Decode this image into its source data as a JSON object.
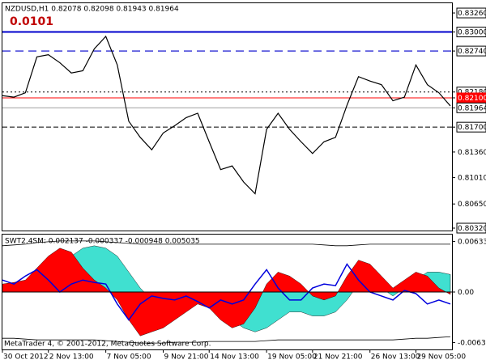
{
  "chart_data": [
    {
      "type": "line",
      "title": "NZDUSD,H1  0.82078 0.82098 0.81943 0.81964",
      "annotation": "0.0101",
      "color": "#000000",
      "categories": [
        "30 Oct 2012",
        null,
        null,
        null,
        "2 Nov 13:00",
        null,
        null,
        null,
        null,
        "7 Nov 05:00",
        null,
        null,
        null,
        null,
        "9 Nov 21:00",
        null,
        null,
        null,
        "14 Nov 13:00",
        null,
        null,
        null,
        null,
        "19 Nov 05:00",
        null,
        null,
        null,
        "21 Nov 21:00",
        null,
        null,
        null,
        null,
        "26 Nov 13:00",
        null,
        null,
        null,
        "29 Nov 05:00",
        null,
        null,
        null
      ],
      "values": [
        0.8213,
        0.8211,
        0.8217,
        0.8266,
        0.8269,
        0.8258,
        0.8244,
        0.8247,
        0.8277,
        0.8294,
        0.8255,
        0.8178,
        0.8156,
        0.8139,
        0.8162,
        0.8172,
        0.8183,
        0.8189,
        0.815,
        0.8112,
        0.8117,
        0.8095,
        0.8079,
        0.8167,
        0.8189,
        0.8167,
        0.815,
        0.8134,
        0.815,
        0.8156,
        0.82,
        0.8239,
        0.8233,
        0.8228,
        0.8206,
        0.8211,
        0.8255,
        0.8228,
        0.8217,
        0.8199
      ],
      "ylim": [
        0.80287,
        0.83382
      ],
      "yticks": [
        {
          "value": 0.8326,
          "label": "0.83260",
          "box": "#ffffff"
        },
        {
          "value": 0.83,
          "label": "0.83000",
          "box": "#ffffff",
          "line": {
            "color": "#0000cc",
            "dash": "",
            "width": 2
          }
        },
        {
          "value": 0.8274,
          "label": "0.82740",
          "box": "#ffffff",
          "line": {
            "color": "#0000cc",
            "dash": "10 6",
            "width": 1.2
          }
        },
        {
          "value": 0.8218,
          "label": "0.82180",
          "box": "#ffffff",
          "line": {
            "color": "#000000",
            "dash": "2 3",
            "width": 1
          }
        },
        {
          "value": 0.821,
          "label": "0.82100",
          "box": "#ff0000",
          "line": {
            "color": "#ff0000",
            "dash": "",
            "width": 1
          }
        },
        {
          "value": 0.81964,
          "label": "0.81964",
          "box": "#ffffff",
          "line": {
            "color": "#a0a0a0",
            "dash": "",
            "width": 1
          }
        },
        {
          "value": 0.817,
          "label": "0.81700",
          "box": "#ffffff",
          "line": {
            "color": "#000000",
            "dash": "6 3",
            "width": 1
          }
        },
        {
          "value": 0.8136,
          "label": "0.81360"
        },
        {
          "value": 0.8101,
          "label": "0.81010"
        },
        {
          "value": 0.8065,
          "label": "0.80650"
        },
        {
          "value": 0.8032,
          "label": "0.80320",
          "box": "#ffffff"
        }
      ]
    },
    {
      "type": "area",
      "title": "SWT2.4SM:  0.002137 -0.000337 -0.000948 0.005035",
      "footer": "MetaTrader 4, © 2001-2012, MetaQuotes Software Corp.",
      "series": [
        {
          "color": "#40e0d0",
          "fill": true,
          "values": [
            0.0005,
            0.0008,
            0.0012,
            0.002,
            0.003,
            0.004,
            0.0045,
            0.0055,
            0.0058,
            0.0055,
            0.0045,
            0.0025,
            0.0005,
            -0.001,
            -0.0015,
            -0.001,
            -0.0005,
            -0.0005,
            -0.0015,
            -0.0025,
            -0.0035,
            -0.0045,
            -0.005,
            -0.0045,
            -0.0035,
            -0.0025,
            -0.0025,
            -0.003,
            -0.003,
            -0.0025,
            -0.001,
            0.001,
            0.0015,
            0.0005,
            -0.0005,
            0.0005,
            0.0015,
            0.0025,
            0.0025,
            0.0022
          ]
        },
        {
          "color": "#ff0000",
          "fill": true,
          "values": [
            0.001,
            0.0012,
            0.0015,
            0.003,
            0.0045,
            0.0055,
            0.005,
            0.003,
            0.0015,
            0.0005,
            -0.001,
            -0.0035,
            -0.0055,
            -0.005,
            -0.0045,
            -0.0035,
            -0.0025,
            -0.0015,
            -0.002,
            -0.0035,
            -0.0045,
            -0.004,
            -0.002,
            0.001,
            0.0025,
            0.002,
            0.001,
            -0.0005,
            -0.001,
            -0.0005,
            0.002,
            0.004,
            0.0035,
            0.002,
            0.0005,
            0.0015,
            0.0025,
            0.002,
            0.0005,
            -0.0003
          ]
        },
        {
          "color": "#0000dd",
          "fill": false,
          "values": [
            0.0015,
            0.001,
            0.002,
            0.0028,
            0.0015,
            0.0,
            0.001,
            0.0015,
            0.0012,
            0.001,
            -0.0015,
            -0.0035,
            -0.0015,
            -0.0005,
            -0.0008,
            -0.001,
            -0.0005,
            -0.0012,
            -0.002,
            -0.001,
            -0.0015,
            -0.001,
            0.001,
            0.0028,
            0.0005,
            -0.001,
            -0.001,
            0.0005,
            0.001,
            0.0008,
            0.0035,
            0.0015,
            0.0,
            -0.0005,
            -0.001,
            0.0002,
            -0.0002,
            -0.0015,
            -0.001,
            -0.0015
          ]
        },
        {
          "color": "#000000",
          "fill": false,
          "values": [
            0.0058,
            0.0059,
            0.006,
            0.0062,
            0.0063,
            0.0064,
            0.0064,
            0.0064,
            0.0064,
            0.0063,
            0.0062,
            0.0061,
            0.006,
            0.006,
            0.006,
            0.006,
            0.006,
            0.006,
            0.006,
            0.006,
            0.006,
            0.006,
            0.006,
            0.006,
            0.006,
            0.006,
            0.006,
            0.006,
            0.0059,
            0.0058,
            0.0058,
            0.0059,
            0.006,
            0.006,
            0.006,
            0.006,
            0.006,
            0.006,
            0.006,
            0.006
          ]
        },
        {
          "color": "#000000",
          "fill": false,
          "values": [
            -0.0058,
            -0.0058,
            -0.0059,
            -0.006,
            -0.006,
            -0.006,
            -0.006,
            -0.006,
            -0.006,
            -0.0061,
            -0.0062,
            -0.0063,
            -0.0064,
            -0.0064,
            -0.0064,
            -0.0063,
            -0.0063,
            -0.0063,
            -0.0062,
            -0.0062,
            -0.0062,
            -0.0062,
            -0.0062,
            -0.0061,
            -0.006,
            -0.006,
            -0.006,
            -0.006,
            -0.006,
            -0.006,
            -0.006,
            -0.006,
            -0.006,
            -0.006,
            -0.006,
            -0.0059,
            -0.0058,
            -0.0058,
            -0.0057,
            -0.0056
          ]
        }
      ],
      "ylim": [
        -0.0072,
        0.0071
      ],
      "yticks": [
        {
          "value": 0.00633,
          "label": "0.00633"
        },
        {
          "value": 0,
          "label": "0.00"
        },
        {
          "value": -0.00633,
          "label": "-0.00633"
        }
      ],
      "zero_line": true
    }
  ]
}
